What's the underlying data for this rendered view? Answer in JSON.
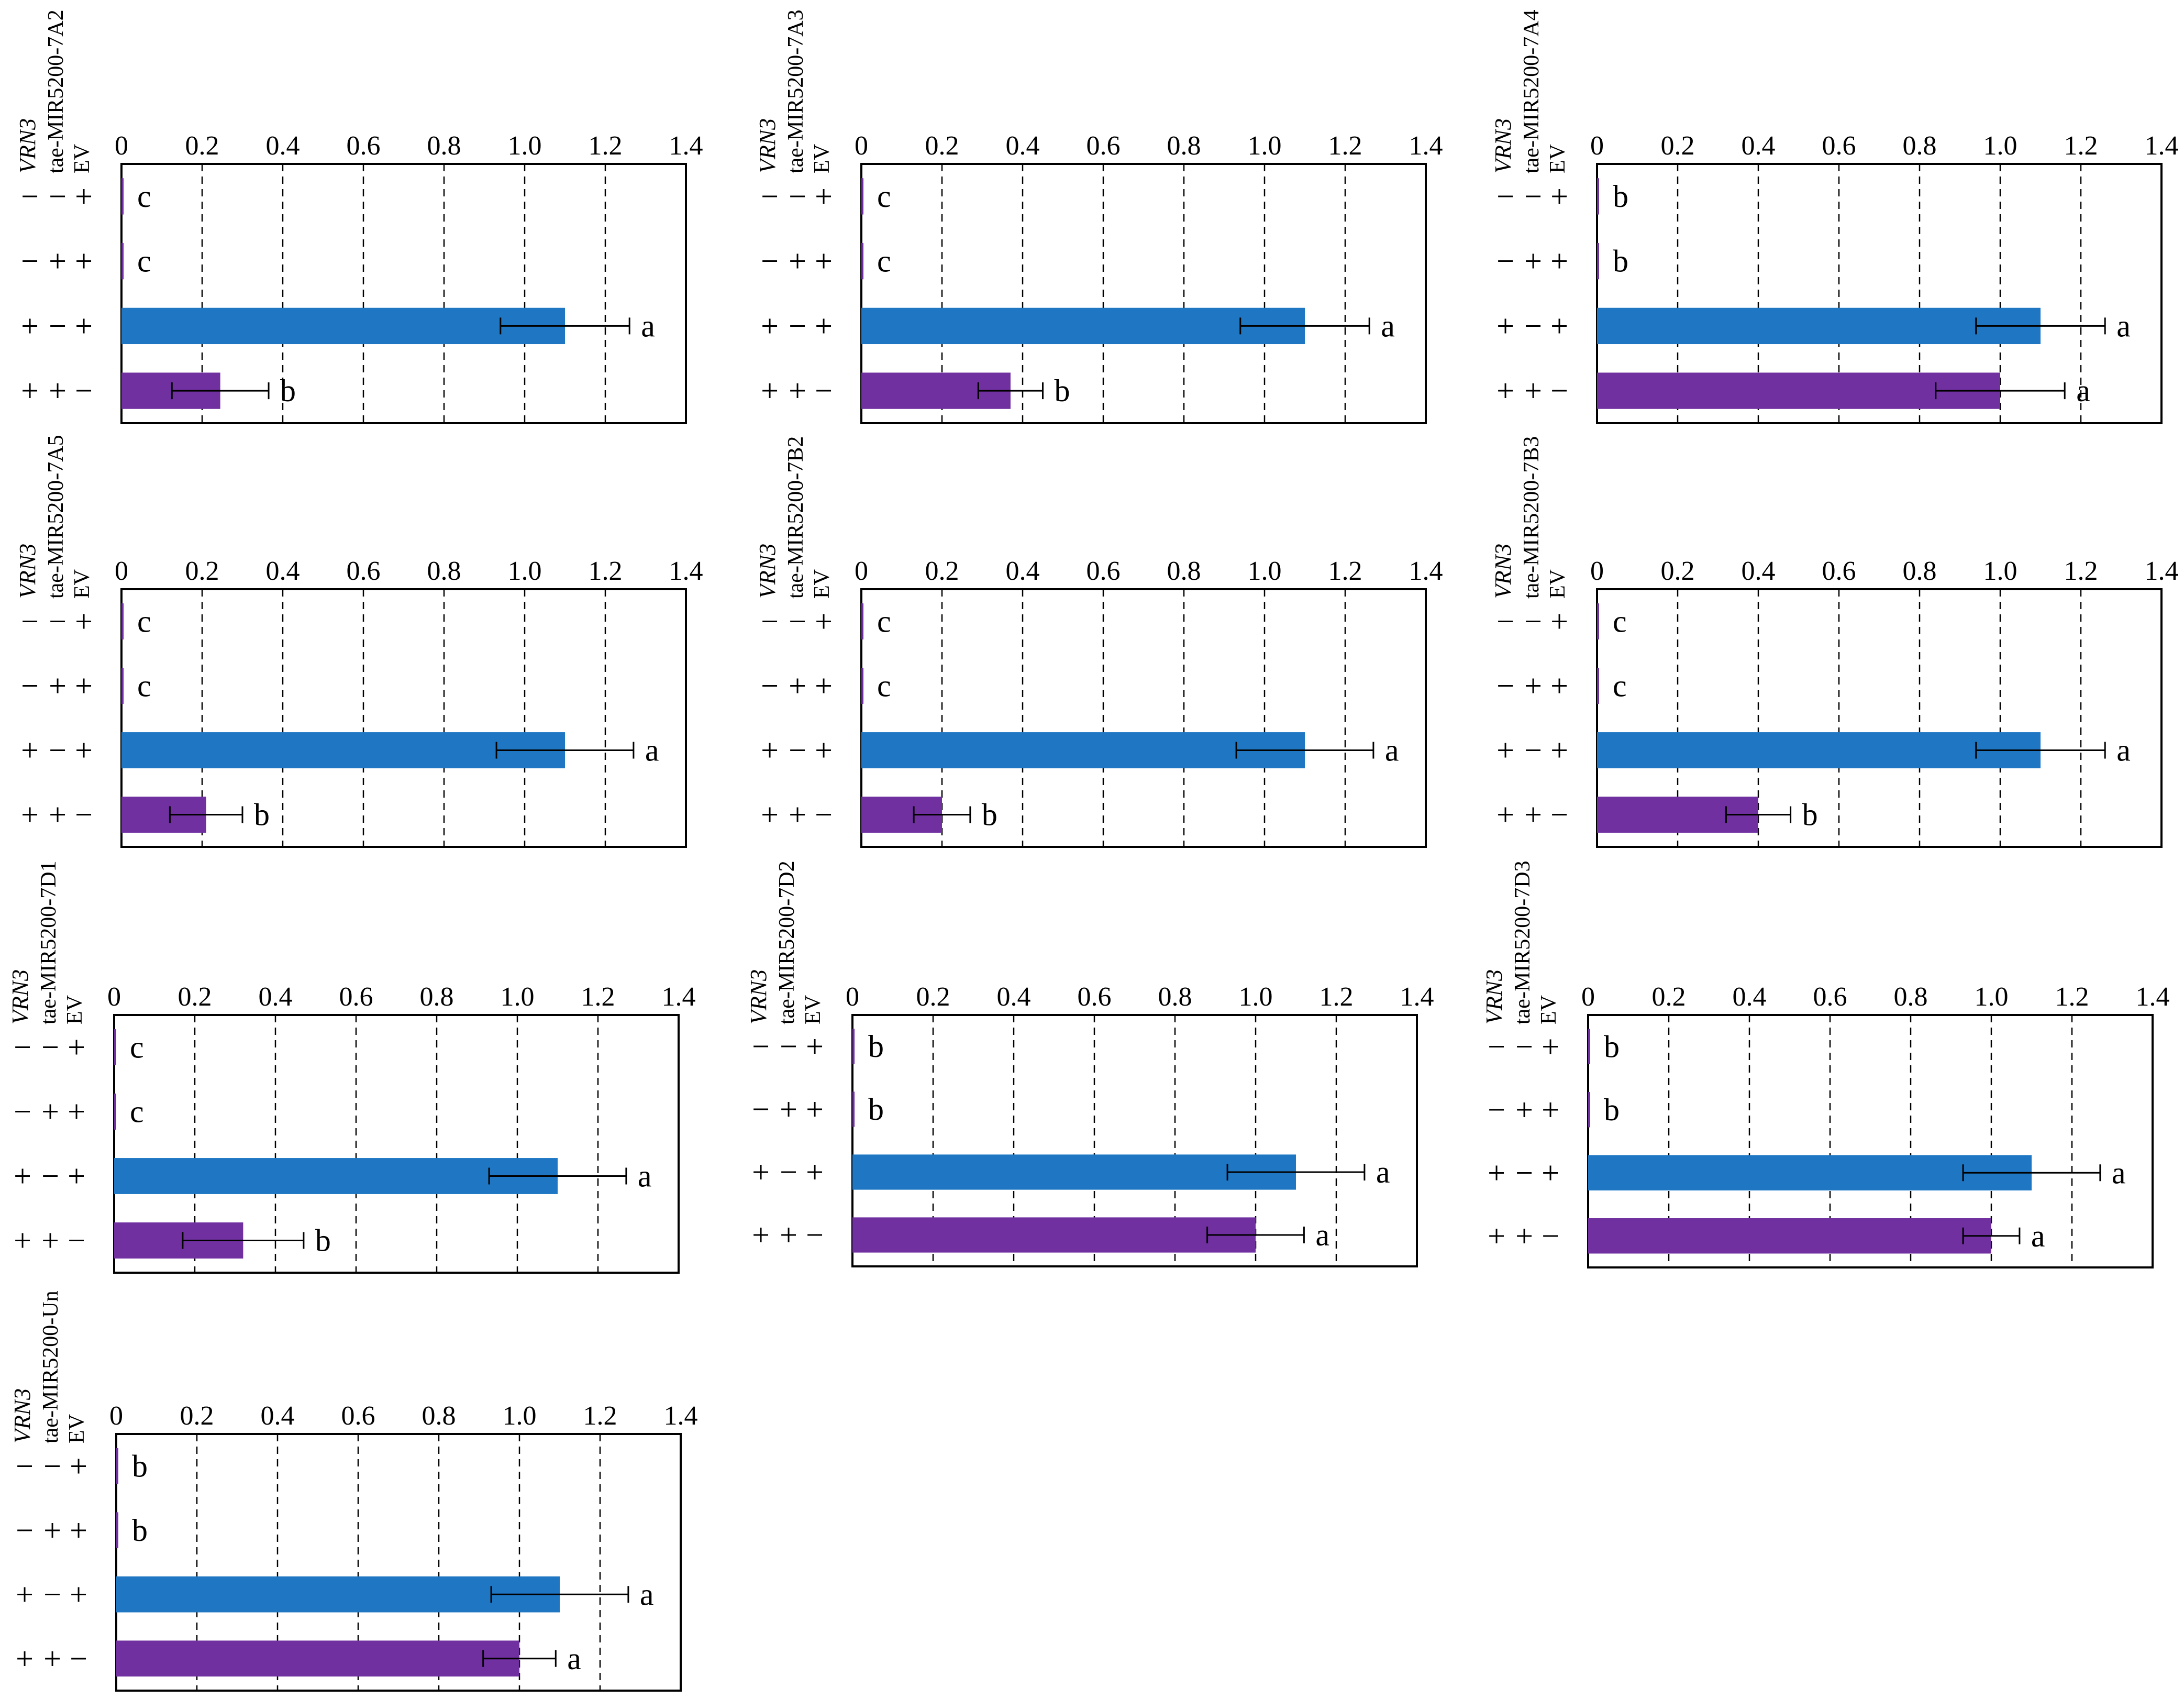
{
  "figure": {
    "header_labels": [
      "VRN3",
      "tae-MIR5200",
      "EV"
    ],
    "bar_colors": {
      "vrn3_only": "#1f77c4",
      "vrn3_with_mir": "#7030a0"
    },
    "row_patterns": [
      [
        "−",
        "−",
        "+"
      ],
      [
        "−",
        "+",
        "+"
      ],
      [
        "+",
        "−",
        "+"
      ],
      [
        "+",
        "+",
        "−"
      ]
    ]
  },
  "chart_data": [
    {
      "type": "bar",
      "orientation": "horizontal",
      "title": "tae-MIR5200-7A2",
      "xlim": [
        0,
        1.4
      ],
      "xticks": [
        "0",
        "0.2",
        "0.4",
        "0.6",
        "0.8",
        "1.0",
        "1.2",
        "1.4"
      ],
      "grid": "vertical-dashed",
      "values": [
        0.005,
        0.005,
        1.1,
        0.245
      ],
      "errors": [
        0,
        0,
        0.16,
        0.12
      ],
      "letters": [
        "c",
        "c",
        "a",
        "b"
      ]
    },
    {
      "type": "bar",
      "orientation": "horizontal",
      "title": "tae-MIR5200-7A3",
      "xlim": [
        0,
        1.4
      ],
      "xticks": [
        "0",
        "0.2",
        "0.4",
        "0.6",
        "0.8",
        "1.0",
        "1.2",
        "1.4"
      ],
      "grid": "vertical-dashed",
      "values": [
        0.005,
        0.005,
        1.1,
        0.37
      ],
      "errors": [
        0,
        0,
        0.16,
        0.08
      ],
      "letters": [
        "c",
        "c",
        "a",
        "b"
      ]
    },
    {
      "type": "bar",
      "orientation": "horizontal",
      "title": "tae-MIR5200-7A4",
      "xlim": [
        0,
        1.4
      ],
      "xticks": [
        "0",
        "0.2",
        "0.4",
        "0.6",
        "0.8",
        "1.0",
        "1.2",
        "1.4"
      ],
      "grid": "vertical-dashed",
      "values": [
        0.005,
        0.005,
        1.1,
        1.0
      ],
      "errors": [
        0,
        0,
        0.16,
        0.16
      ],
      "letters": [
        "b",
        "b",
        "a",
        "a"
      ]
    },
    {
      "type": "bar",
      "orientation": "horizontal",
      "title": "tae-MIR5200-7A5",
      "xlim": [
        0,
        1.4
      ],
      "xticks": [
        "0",
        "0.2",
        "0.4",
        "0.6",
        "0.8",
        "1.0",
        "1.2",
        "1.4"
      ],
      "grid": "vertical-dashed",
      "values": [
        0.005,
        0.005,
        1.1,
        0.21
      ],
      "errors": [
        0,
        0,
        0.17,
        0.09
      ],
      "letters": [
        "c",
        "c",
        "a",
        "b"
      ]
    },
    {
      "type": "bar",
      "orientation": "horizontal",
      "title": "tae-MIR5200-7B2",
      "xlim": [
        0,
        1.4
      ],
      "xticks": [
        "0",
        "0.2",
        "0.4",
        "0.6",
        "0.8",
        "1.0",
        "1.2",
        "1.4"
      ],
      "grid": "vertical-dashed",
      "values": [
        0.005,
        0.005,
        1.1,
        0.2
      ],
      "errors": [
        0,
        0,
        0.17,
        0.07
      ],
      "letters": [
        "c",
        "c",
        "a",
        "b"
      ]
    },
    {
      "type": "bar",
      "orientation": "horizontal",
      "title": "tae-MIR5200-7B3",
      "xlim": [
        0,
        1.4
      ],
      "xticks": [
        "0",
        "0.2",
        "0.4",
        "0.6",
        "0.8",
        "1.0",
        "1.2",
        "1.4"
      ],
      "grid": "vertical-dashed",
      "values": [
        0.005,
        0.005,
        1.1,
        0.4
      ],
      "errors": [
        0,
        0,
        0.16,
        0.08
      ],
      "letters": [
        "c",
        "c",
        "a",
        "b"
      ]
    },
    {
      "type": "bar",
      "orientation": "horizontal",
      "title": "tae-MIR5200-7D1",
      "xlim": [
        0,
        1.4
      ],
      "xticks": [
        "0",
        "0.2",
        "0.4",
        "0.6",
        "0.8",
        "1.0",
        "1.2",
        "1.4"
      ],
      "grid": "vertical-dashed",
      "values": [
        0.005,
        0.005,
        1.1,
        0.32
      ],
      "errors": [
        0,
        0,
        0.17,
        0.15
      ],
      "letters": [
        "c",
        "c",
        "a",
        "b"
      ]
    },
    {
      "type": "bar",
      "orientation": "horizontal",
      "title": "tae-MIR5200-7D2",
      "xlim": [
        0,
        1.4
      ],
      "xticks": [
        "0",
        "0.2",
        "0.4",
        "0.6",
        "0.8",
        "1.0",
        "1.2",
        "1.4"
      ],
      "grid": "vertical-dashed",
      "values": [
        0.005,
        0.005,
        1.1,
        1.0
      ],
      "errors": [
        0,
        0,
        0.17,
        0.12
      ],
      "letters": [
        "b",
        "b",
        "a",
        "a"
      ]
    },
    {
      "type": "bar",
      "orientation": "horizontal",
      "title": "tae-MIR5200-7D3",
      "xlim": [
        0,
        1.4
      ],
      "xticks": [
        "0",
        "0.2",
        "0.4",
        "0.6",
        "0.8",
        "1.0",
        "1.2",
        "1.4"
      ],
      "grid": "vertical-dashed",
      "values": [
        0.005,
        0.005,
        1.1,
        1.0
      ],
      "errors": [
        0,
        0,
        0.17,
        0.07
      ],
      "letters": [
        "b",
        "b",
        "a",
        "a"
      ]
    },
    {
      "type": "bar",
      "orientation": "horizontal",
      "title": "tae-MIR5200-Un",
      "xlim": [
        0,
        1.4
      ],
      "xticks": [
        "0",
        "0.2",
        "0.4",
        "0.6",
        "0.8",
        "1.0",
        "1.2",
        "1.4"
      ],
      "grid": "vertical-dashed",
      "values": [
        0.005,
        0.005,
        1.1,
        1.0
      ],
      "errors": [
        0,
        0,
        0.17,
        0.09
      ],
      "letters": [
        "b",
        "b",
        "a",
        "a"
      ]
    }
  ]
}
